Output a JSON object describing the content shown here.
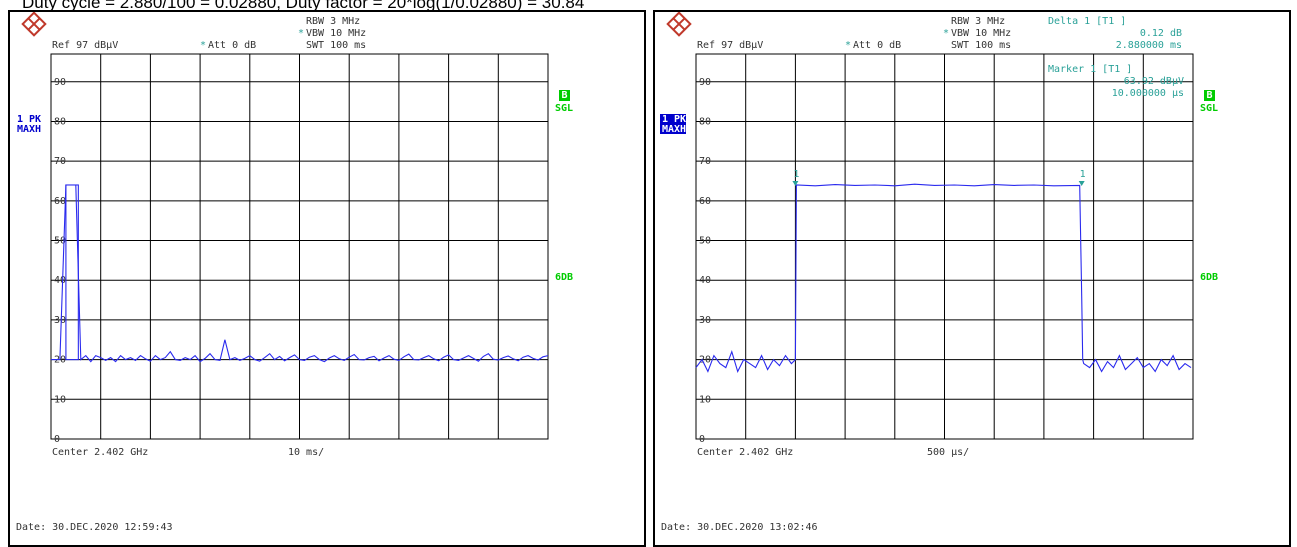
{
  "caption": "Duty cycle = 2.880/100 = 0.02880, Duty factor = 20*log(1/0.02880) = 30.84",
  "colors": {
    "trace": "#2a2aee",
    "grid": "#000000",
    "text": "#333333",
    "marker": "#2aa198",
    "sgl_bg": "#00cc00",
    "pk_bg": "#0000cc"
  },
  "chart_data": [
    {
      "type": "line",
      "header": {
        "rbw": "RBW 3 MHz",
        "vbw": "VBW 10 MHz",
        "vbw_star": "*",
        "swt": "SWT 100 ms",
        "ref": "Ref  97 dBµV",
        "att": "Att  0 dB",
        "att_star": "*",
        "delta_title": "",
        "delta_value": "",
        "delta_time": ""
      },
      "left_badge": {
        "line1": "1 PK",
        "line2": "MAXH"
      },
      "right_badge": {
        "line1": "B",
        "line2": "SGL"
      },
      "display_line": "6DB",
      "marker_box": {
        "title": "",
        "value": "",
        "time": ""
      },
      "footer": {
        "center": "Center 2.402 GHz",
        "span": "10 ms/",
        "date": "Date: 30.DEC.2020  12:59:43"
      },
      "y_ticks": [
        "90",
        "80",
        "70",
        "60",
        "50",
        "40",
        "30",
        "20",
        "10",
        "0"
      ],
      "ylim": [
        0,
        97
      ],
      "xlim": [
        0,
        100
      ],
      "series": [
        {
          "x": [
            0,
            1.8,
            3,
            4,
            5,
            6,
            7,
            8,
            9,
            10,
            11,
            12,
            13,
            14,
            15,
            16,
            17,
            18,
            19,
            20,
            21,
            22,
            23,
            24,
            25,
            26,
            27,
            28,
            29,
            30,
            31,
            32,
            33,
            34,
            35,
            36,
            37,
            38,
            39,
            40,
            41,
            42,
            43,
            44,
            45,
            46,
            47,
            48,
            49,
            50,
            51,
            52,
            53,
            54,
            55,
            56,
            57,
            58,
            59,
            60,
            61,
            62,
            63,
            64,
            65,
            66,
            67,
            68,
            69,
            70,
            71,
            72,
            73,
            74,
            75,
            76,
            77,
            78,
            79,
            80,
            81,
            82,
            83,
            84,
            85,
            86,
            87,
            88,
            89,
            90,
            91,
            92,
            93,
            94,
            95,
            96,
            97,
            98,
            99,
            100
          ],
          "y": [
            20,
            20,
            64,
            64,
            64,
            20,
            21,
            19.5,
            21,
            20.5,
            19.8,
            20.5,
            19.5,
            21,
            20,
            20.5,
            19.8,
            21,
            20.2,
            19.6,
            21,
            20,
            20.5,
            22,
            20,
            19.8,
            20.5,
            20,
            21,
            19.5,
            20.3,
            21.5,
            20,
            19.8,
            25,
            20,
            20.5,
            19.8,
            20.3,
            21,
            20,
            19.6,
            20.5,
            21.5,
            20,
            20.8,
            19.7,
            20.5,
            21.2,
            20,
            19.8,
            20.6,
            21,
            20,
            19.5,
            20.4,
            21,
            20.2,
            19.8,
            20.6,
            21.3,
            20,
            19.9,
            20.5,
            20.8,
            19.7,
            20.4,
            21,
            20.1,
            19.8,
            20.7,
            21.4,
            20,
            19.9,
            20.5,
            21,
            20.2,
            19.7,
            20.6,
            21.2,
            20,
            19.8,
            20.4,
            21,
            20.3,
            19.6,
            20.8,
            21.5,
            20.1,
            19.9,
            20.5,
            20.9,
            20.2,
            19.7,
            20.6,
            21,
            20.3,
            19.9,
            20.7,
            21
          ],
          "pulse": [
            3,
            5.5
          ]
        }
      ]
    },
    {
      "type": "line",
      "header": {
        "rbw": "RBW 3 MHz",
        "vbw": "VBW 10 MHz",
        "vbw_star": "*",
        "swt": "SWT 100 ms",
        "ref": "Ref  97 dBµV",
        "att": "Att  0 dB",
        "att_star": "*",
        "delta_title": "Delta 1 [T1 ]",
        "delta_value": "0.12 dB",
        "delta_time": "2.880000 ms"
      },
      "left_badge": {
        "line1": "1 PK",
        "line2": "MAXH"
      },
      "right_badge": {
        "line1": "B",
        "line2": "SGL"
      },
      "display_line": "6DB",
      "marker_box": {
        "title": "Marker 1 [T1 ]",
        "value": "63.92 dBµV",
        "time": "10.000000 µs"
      },
      "footer": {
        "center": "Center 2.402 GHz",
        "span": "500 µs/",
        "date": "Date: 30.DEC.2020  13:02:46"
      },
      "y_ticks": [
        "90",
        "80",
        "70",
        "60",
        "50",
        "40",
        "30",
        "20",
        "10",
        "0"
      ],
      "ylim": [
        0,
        97
      ],
      "xlim": [
        0,
        5000
      ],
      "markers": [
        {
          "label": "1",
          "x": 1000,
          "y": 64
        },
        {
          "label": "1",
          "x": 3880,
          "y": 64
        }
      ],
      "series": [
        {
          "x": [
            0,
            60,
            120,
            180,
            240,
            300,
            360,
            420,
            480,
            540,
            600,
            660,
            720,
            780,
            840,
            900,
            960,
            1000,
            1010,
            1200,
            1400,
            1600,
            1800,
            2000,
            2200,
            2400,
            2600,
            2800,
            3000,
            3200,
            3400,
            3600,
            3860,
            3880,
            3890,
            3900,
            3960,
            4020,
            4080,
            4140,
            4200,
            4260,
            4320,
            4380,
            4440,
            4500,
            4560,
            4620,
            4680,
            4740,
            4800,
            4860,
            4920,
            4980
          ],
          "y": [
            18,
            20,
            17,
            21,
            19,
            18,
            22,
            17,
            20,
            19,
            18,
            21,
            17.5,
            20,
            18.5,
            21,
            19,
            20,
            64,
            63.8,
            64.1,
            63.9,
            64,
            63.8,
            64.2,
            63.9,
            64,
            63.8,
            64.1,
            63.9,
            64,
            63.8,
            63.9,
            36,
            20,
            19,
            18,
            20,
            17,
            19.5,
            18,
            21,
            17.5,
            19,
            20.5,
            18,
            19,
            17,
            20,
            18.5,
            21,
            17.5,
            19,
            18
          ]
        }
      ]
    }
  ]
}
